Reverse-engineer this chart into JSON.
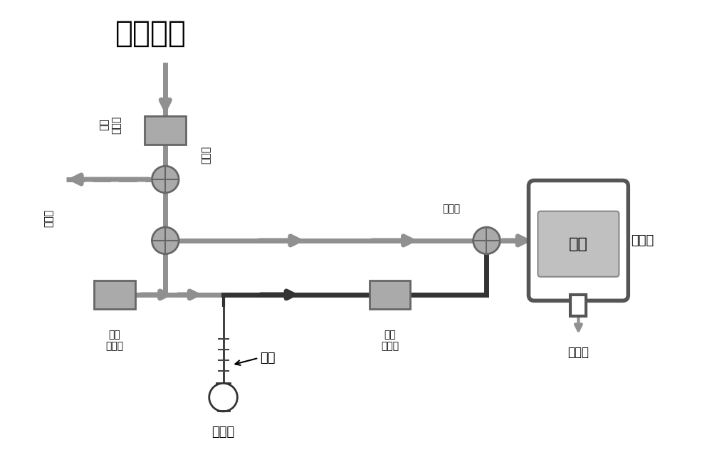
{
  "bg_color": "#ffffff",
  "gray": "#909090",
  "dark_gray": "#555555",
  "black": "#1a1a1a",
  "box_fill": "#aaaaaa",
  "box_edge": "#666666",
  "sample_edge": "#555555",
  "title": "干燥氮气",
  "lbl_fc1": "流量\n控制计",
  "lbl_tv1": "三通阀",
  "lbl_tv2": "三通阀",
  "lbl_tv3": "三通阀",
  "lbl_fc2": "流量\n控制计",
  "lbl_fc3": "流量\n控制计",
  "lbl_sample": "样品",
  "lbl_sample_room": "样品仓",
  "lbl_exhaust": "排气口",
  "lbl_ethanol": "乙醇",
  "lbl_washer": "洗气瓶"
}
